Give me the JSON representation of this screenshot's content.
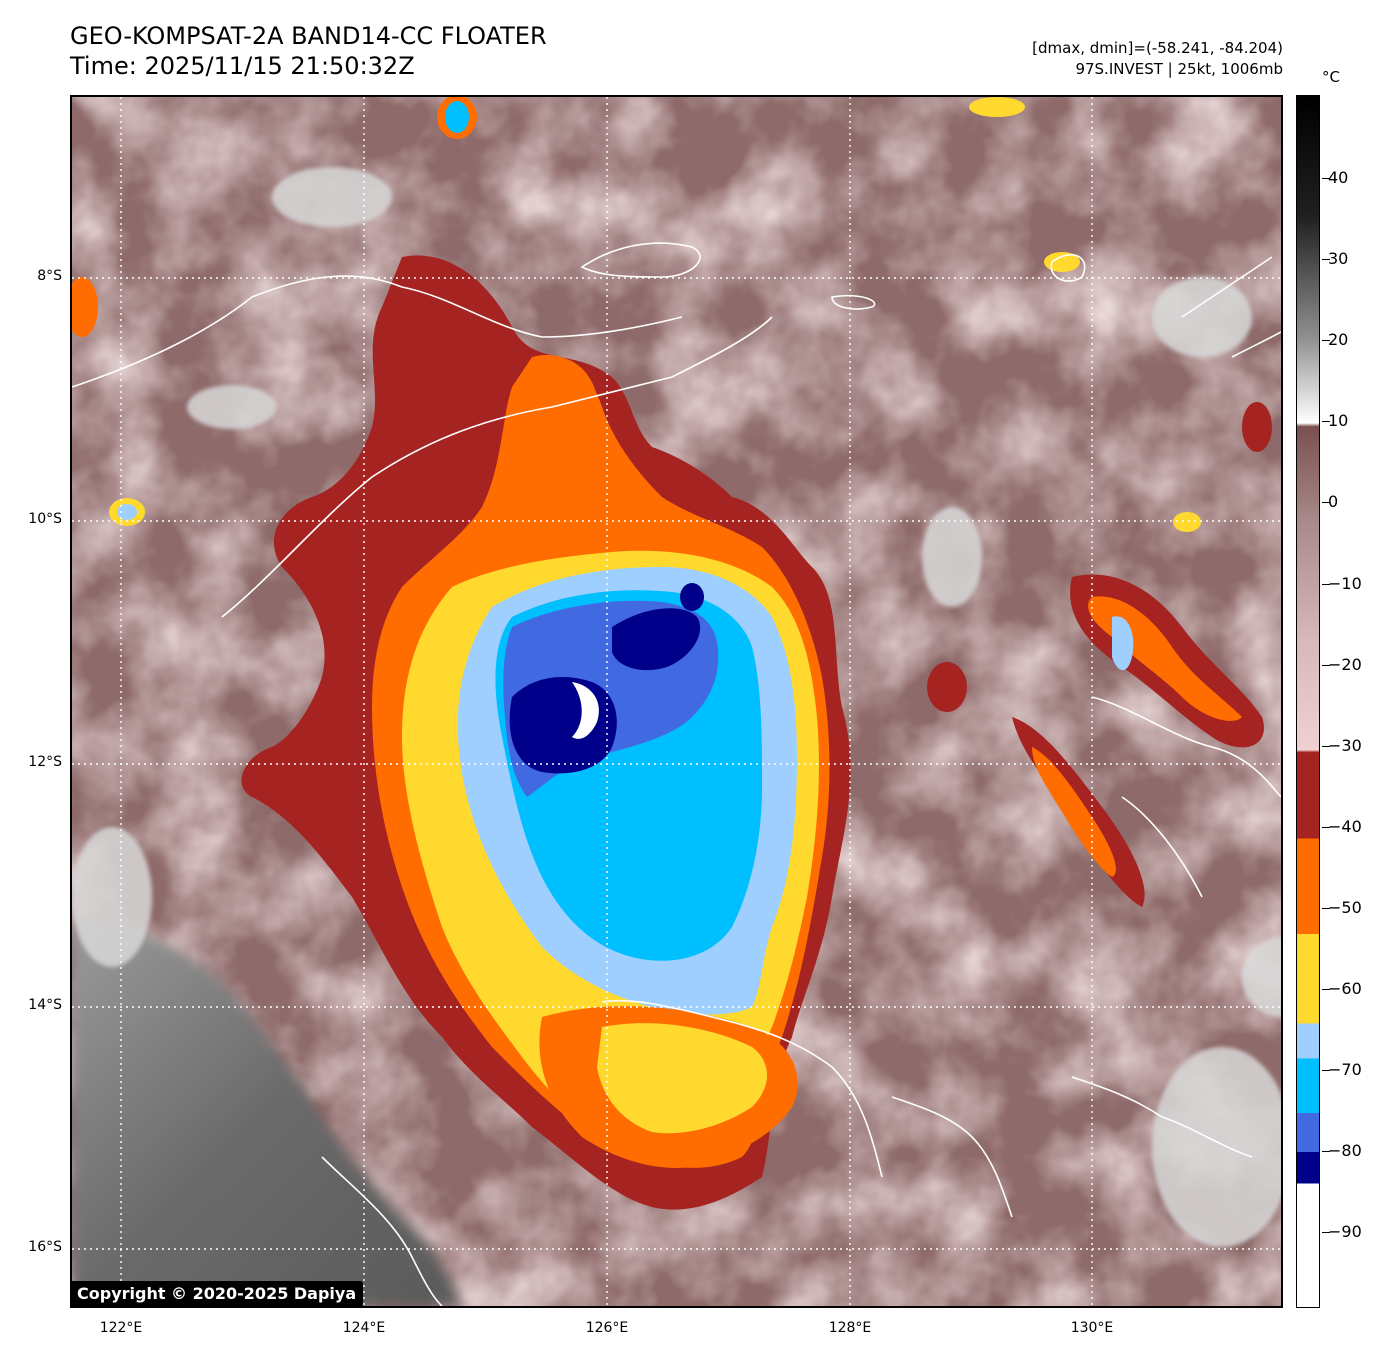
{
  "header": {
    "title": "GEO-KOMPSAT-2A BAND14-CC FLOATER",
    "time": "Time: 2025/11/15 21:50:32Z",
    "data_range": "[dmax, dmin]=(-58.241, -84.204)",
    "storm_info": "97S.INVEST | 25kt, 1006mb"
  },
  "map": {
    "lat_labels": [
      "8°S",
      "10°S",
      "12°S",
      "14°S",
      "16°S"
    ],
    "lon_labels": [
      "122°E",
      "124°E",
      "126°E",
      "128°E",
      "130°E"
    ],
    "copyright": "Copyright © 2020-2025 Dapiya"
  },
  "colorbar": {
    "unit": "°C",
    "tick_labels": [
      "40",
      "30",
      "20",
      "10",
      "0",
      "−10",
      "−20",
      "−30",
      "−40",
      "−50",
      "−60",
      "−70",
      "−80",
      "−90"
    ],
    "colors": {
      "dark_navy": "#00008b",
      "royal_blue": "#4169e1",
      "sky_blue": "#00bfff",
      "light_blue": "#9ecfff",
      "yellow": "#ffd92e",
      "orange": "#ff6d00",
      "dark_red": "#a52422",
      "pink": "#f0d0d0",
      "brown": "#7a5050",
      "gray": "#808080",
      "black": "#000000",
      "white": "#ffffff"
    }
  }
}
